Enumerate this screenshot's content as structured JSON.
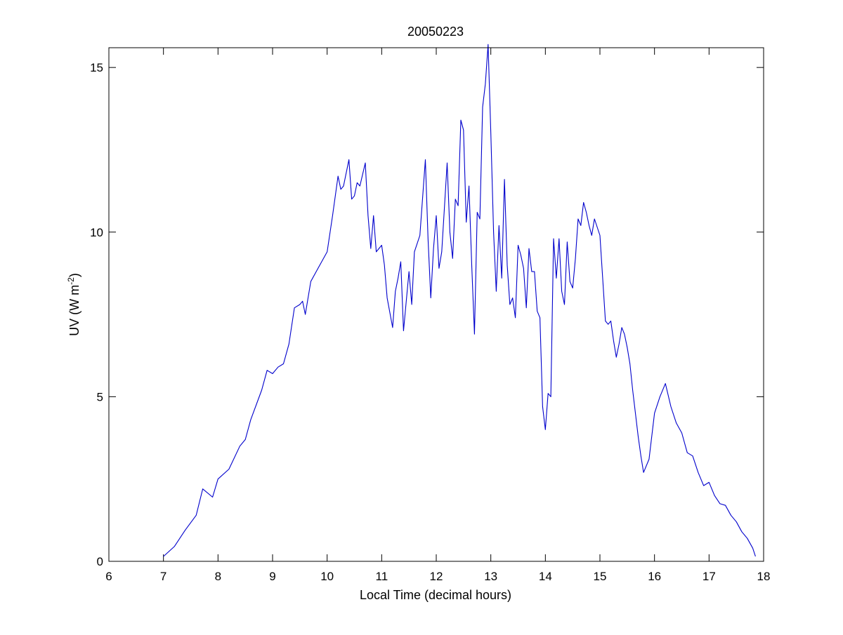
{
  "chart_data": {
    "type": "line",
    "title": "20050223",
    "xlabel": "Local Time (decimal hours)",
    "ylabel_main": "UV (W m",
    "ylabel_sup": "-2",
    "ylabel_close": ")",
    "xlim": [
      6,
      18
    ],
    "ylim": [
      0,
      15.6
    ],
    "xticks": [
      6,
      7,
      8,
      9,
      10,
      11,
      12,
      13,
      14,
      15,
      16,
      17,
      18
    ],
    "xtick_labels": [
      "6",
      "7",
      "8",
      "9",
      "10",
      "11",
      "12",
      "13",
      "14",
      "15",
      "16",
      "17",
      "18"
    ],
    "yticks": [
      0,
      5,
      10,
      15
    ],
    "ytick_labels": [
      "0",
      "5",
      "10",
      "15"
    ],
    "grid": false,
    "series": [
      {
        "color": "#0000cc",
        "x": [
          7.0,
          7.2,
          7.4,
          7.6,
          7.72,
          7.9,
          8.0,
          8.2,
          8.4,
          8.5,
          8.6,
          8.8,
          8.9,
          9.0,
          9.1,
          9.2,
          9.3,
          9.4,
          9.5,
          9.55,
          9.6,
          9.7,
          9.8,
          9.9,
          10.0,
          10.1,
          10.2,
          10.25,
          10.3,
          10.4,
          10.45,
          10.5,
          10.55,
          10.6,
          10.7,
          10.75,
          10.8,
          10.85,
          10.9,
          11.0,
          11.05,
          11.1,
          11.2,
          11.25,
          11.3,
          11.35,
          11.4,
          11.5,
          11.55,
          11.6,
          11.7,
          11.8,
          11.85,
          11.9,
          11.95,
          12.0,
          12.05,
          12.1,
          12.2,
          12.25,
          12.3,
          12.35,
          12.4,
          12.45,
          12.5,
          12.55,
          12.6,
          12.65,
          12.7,
          12.75,
          12.8,
          12.85,
          12.9,
          12.95,
          13.0,
          13.05,
          13.1,
          13.15,
          13.2,
          13.25,
          13.3,
          13.35,
          13.4,
          13.45,
          13.5,
          13.55,
          13.6,
          13.65,
          13.7,
          13.75,
          13.8,
          13.85,
          13.9,
          13.95,
          14.0,
          14.05,
          14.1,
          14.15,
          14.2,
          14.25,
          14.3,
          14.35,
          14.4,
          14.45,
          14.5,
          14.55,
          14.6,
          14.65,
          14.7,
          14.75,
          14.8,
          14.85,
          14.9,
          15.0,
          15.05,
          15.1,
          15.15,
          15.2,
          15.25,
          15.3,
          15.35,
          15.4,
          15.45,
          15.5,
          15.55,
          15.6,
          15.65,
          15.7,
          15.75,
          15.8,
          15.9,
          16.0,
          16.1,
          16.2,
          16.3,
          16.4,
          16.5,
          16.6,
          16.7,
          16.8,
          16.9,
          17.0,
          17.1,
          17.2,
          17.3,
          17.4,
          17.5,
          17.6,
          17.7,
          17.8,
          17.85
        ],
        "y": [
          0.15,
          0.45,
          0.95,
          1.4,
          2.2,
          1.95,
          2.5,
          2.8,
          3.5,
          3.7,
          4.3,
          5.2,
          5.8,
          5.7,
          5.9,
          6.0,
          6.6,
          7.7,
          7.8,
          7.9,
          7.5,
          8.5,
          8.8,
          9.1,
          9.4,
          10.5,
          11.7,
          11.3,
          11.4,
          12.2,
          11.0,
          11.1,
          11.5,
          11.4,
          12.1,
          10.5,
          9.5,
          10.5,
          9.4,
          9.6,
          9.0,
          8.0,
          7.1,
          8.2,
          8.6,
          9.1,
          7.0,
          8.8,
          7.8,
          9.4,
          9.9,
          12.2,
          9.8,
          8.0,
          9.5,
          10.5,
          8.9,
          9.4,
          12.1,
          10.0,
          9.2,
          11.0,
          10.8,
          13.4,
          13.1,
          10.3,
          11.4,
          9.0,
          6.9,
          10.6,
          10.4,
          13.8,
          14.5,
          15.7,
          13.0,
          10.0,
          8.2,
          10.2,
          8.6,
          11.6,
          9.0,
          7.8,
          8.0,
          7.4,
          9.6,
          9.3,
          8.9,
          7.7,
          9.5,
          8.8,
          8.8,
          7.6,
          7.4,
          4.7,
          4.0,
          5.1,
          5.0,
          9.8,
          8.6,
          9.8,
          8.2,
          7.8,
          9.7,
          8.5,
          8.3,
          9.2,
          10.4,
          10.2,
          10.9,
          10.6,
          10.2,
          9.9,
          10.4,
          9.9,
          8.6,
          7.3,
          7.2,
          7.3,
          6.7,
          6.2,
          6.6,
          7.1,
          6.9,
          6.5,
          6.0,
          5.2,
          4.5,
          3.8,
          3.2,
          2.7,
          3.1,
          4.5,
          5.0,
          5.4,
          4.7,
          4.2,
          3.9,
          3.3,
          3.2,
          2.7,
          2.3,
          2.4,
          2.0,
          1.75,
          1.7,
          1.4,
          1.2,
          0.9,
          0.7,
          0.4,
          0.15
        ]
      }
    ]
  }
}
